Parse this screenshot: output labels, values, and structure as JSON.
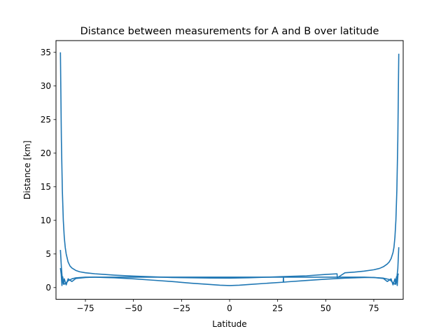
{
  "chart_data": {
    "type": "line",
    "title": "Distance between measurements for A and B over latitude",
    "xlabel": "Latitude",
    "ylabel": "Distance [km]",
    "xlim": [
      -90.3,
      90.3
    ],
    "ylim": [
      -1.75,
      36.75
    ],
    "xticks": [
      -75,
      -50,
      -25,
      0,
      25,
      50,
      75
    ],
    "xtick_labels": [
      "−75",
      "−50",
      "−25",
      "0",
      "25",
      "50",
      "75"
    ],
    "yticks": [
      0,
      5,
      10,
      15,
      20,
      25,
      30,
      35
    ],
    "ytick_labels": [
      "0",
      "5",
      "10",
      "15",
      "20",
      "25",
      "30",
      "35"
    ],
    "grid": false,
    "legend": "none",
    "series_color": "#1f77b4",
    "series": [
      {
        "x": [
          -88.0,
          -87.5,
          -87.0,
          -86.5,
          -86.0,
          -85.5,
          -85.0,
          -84.0,
          -83.0,
          -82.0,
          -80.0,
          -78.0,
          -75.0,
          -70.0,
          -65.0,
          -60.0,
          -50.0,
          -40.0,
          -30.0,
          -20.0,
          -10.0,
          0.0,
          10.0,
          20.0,
          30.0,
          40.0,
          50.0,
          55.9,
          56.0,
          60.0,
          65.0,
          70.0,
          75.0,
          78.0,
          80.0,
          82.0,
          83.0,
          84.0,
          85.0,
          85.5,
          86.0,
          86.5,
          87.0,
          87.5,
          88.0
        ],
        "y": [
          35.0,
          22.0,
          14.5,
          10.0,
          7.5,
          6.0,
          5.0,
          3.8,
          3.2,
          2.9,
          2.55,
          2.35,
          2.2,
          2.05,
          1.95,
          1.85,
          1.7,
          1.6,
          1.5,
          1.45,
          1.42,
          1.4,
          1.45,
          1.55,
          1.65,
          1.75,
          1.95,
          2.05,
          1.45,
          2.2,
          2.3,
          2.45,
          2.65,
          2.85,
          3.1,
          3.5,
          3.8,
          4.3,
          5.2,
          6.0,
          7.5,
          10.0,
          14.5,
          22.0,
          34.8
        ]
      },
      {
        "x": [
          -88.0,
          -87.5,
          -87.0,
          -86.0,
          -85.0,
          -84.0,
          -82.0,
          -80.0,
          -75.0,
          -70.0,
          -65.0,
          -60.0,
          -50.0,
          -40.0,
          -30.0,
          -20.0,
          -10.0,
          -5.0,
          0.0,
          5.0,
          10.0,
          20.0,
          27.9,
          28.0,
          28.1,
          30.0,
          40.0,
          50.0,
          60.0,
          70.0,
          75.0,
          80.0,
          83.0,
          84.0,
          85.0,
          86.0,
          86.5,
          87.0,
          87.5,
          88.0
        ],
        "y": [
          5.6,
          3.0,
          1.2,
          0.5,
          0.7,
          1.0,
          1.3,
          1.45,
          1.55,
          1.55,
          1.5,
          1.45,
          1.3,
          1.1,
          0.9,
          0.65,
          0.45,
          0.35,
          0.3,
          0.35,
          0.45,
          0.65,
          0.8,
          1.6,
          0.8,
          0.85,
          1.05,
          1.25,
          1.4,
          1.5,
          1.5,
          1.4,
          1.2,
          1.0,
          0.7,
          0.5,
          0.9,
          1.5,
          2.8,
          6.0
        ]
      },
      {
        "x": [
          -88.0,
          -87.6,
          -87.2,
          -86.8,
          -86.4,
          -86.0,
          -85.0,
          -84.0,
          -82.0,
          -80.0,
          -75.0,
          -70.0,
          70.0,
          75.0,
          80.0,
          82.0,
          84.0,
          85.0,
          86.0,
          86.4,
          86.8,
          87.2,
          87.6,
          88.0
        ],
        "y": [
          2.9,
          2.0,
          0.3,
          1.6,
          0.5,
          1.3,
          0.4,
          1.3,
          0.9,
          1.35,
          1.5,
          1.55,
          1.55,
          1.5,
          1.35,
          0.9,
          1.3,
          0.4,
          1.3,
          0.5,
          1.6,
          0.3,
          2.0,
          2.0
        ]
      }
    ]
  }
}
